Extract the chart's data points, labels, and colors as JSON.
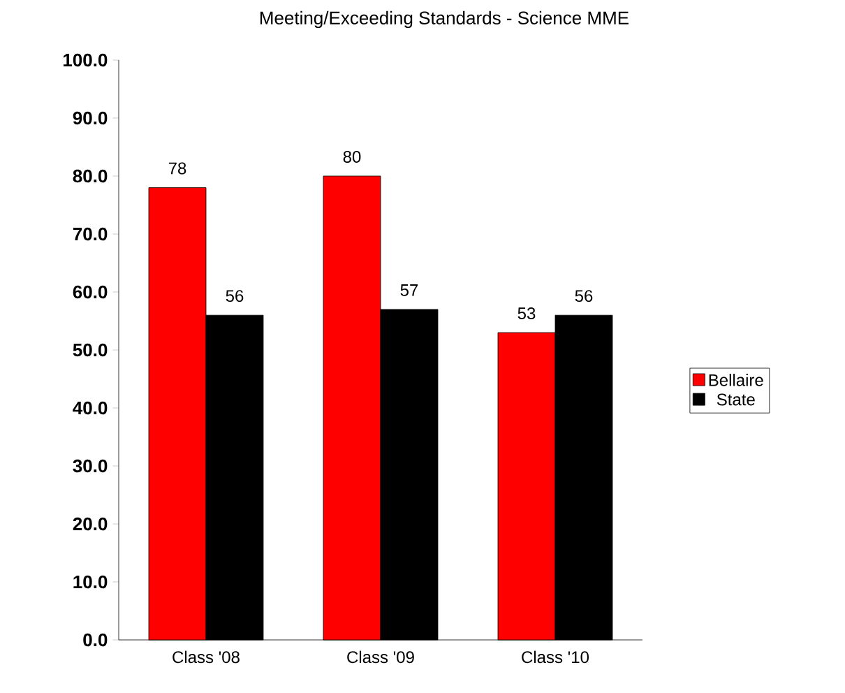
{
  "chart_data": {
    "type": "bar",
    "title": "Meeting/Exceeding Standards - Science MME",
    "categories": [
      "Class '08",
      "Class '09",
      "Class '10"
    ],
    "series": [
      {
        "name": "Bellaire",
        "color": "#ff0000",
        "values": [
          78,
          80,
          53
        ]
      },
      {
        "name": "State",
        "color": "#000000",
        "values": [
          56,
          57,
          56
        ]
      }
    ],
    "ylim": [
      0,
      100
    ],
    "yticks": [
      {
        "value": 0,
        "label": "0.0"
      },
      {
        "value": 10,
        "label": "10.0"
      },
      {
        "value": 20,
        "label": "20.0"
      },
      {
        "value": 30,
        "label": "30.0"
      },
      {
        "value": 40,
        "label": "40.0"
      },
      {
        "value": 50,
        "label": "50.0"
      },
      {
        "value": 60,
        "label": "60.0"
      },
      {
        "value": 70,
        "label": "70.0"
      },
      {
        "value": 80,
        "label": "80.0"
      },
      {
        "value": 90,
        "label": "90.0"
      },
      {
        "value": 100,
        "label": "100.0"
      }
    ],
    "data_labels": true,
    "legend": "right"
  }
}
